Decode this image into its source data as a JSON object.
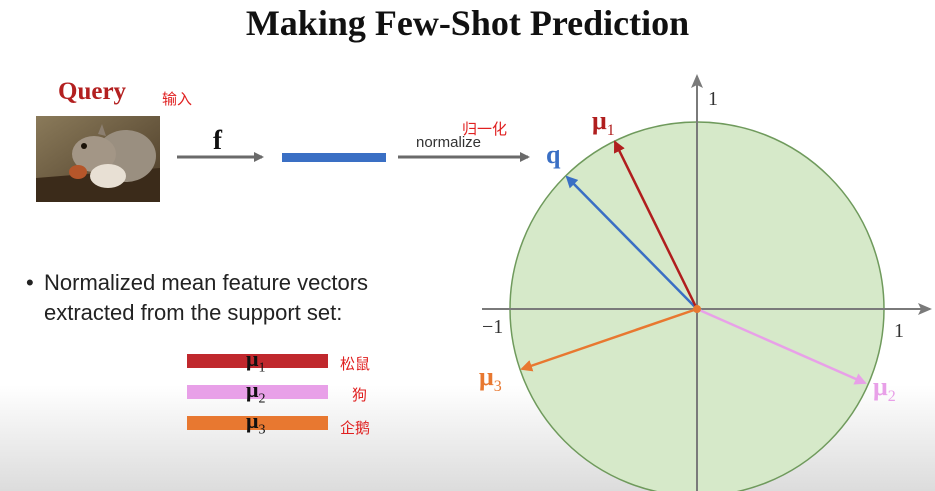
{
  "title": "Making Few-Shot Prediction",
  "query": {
    "label": "Query",
    "label_cn": "输入"
  },
  "pipeline": {
    "f_label": "f",
    "normalize_label": "normalize",
    "normalize_cn": "归一化"
  },
  "bullet": {
    "line1": "Normalized mean feature vectors",
    "line2": "extracted from the support set:"
  },
  "support_vectors": [
    {
      "symbol": "μ",
      "index": "1",
      "cn": "松鼠",
      "color": "#c0282d"
    },
    {
      "symbol": "μ",
      "index": "2",
      "cn": "狗",
      "color": "#e8a0e8"
    },
    {
      "symbol": "μ",
      "index": "3",
      "cn": "企鹅",
      "color": "#e87830"
    }
  ],
  "plot": {
    "tick_labels": {
      "x_pos": "1",
      "x_neg": "−1",
      "y_pos": "1"
    },
    "vectors": [
      {
        "name": "q",
        "index": "",
        "color": "#3a6fc4"
      },
      {
        "name": "μ",
        "index": "1",
        "color": "#b01e1e"
      },
      {
        "name": "μ",
        "index": "2",
        "color": "#e8a0e8"
      },
      {
        "name": "μ",
        "index": "3",
        "color": "#e87830"
      }
    ],
    "circle_fill": "#d6e9c9",
    "circle_stroke": "#6f9a5c"
  },
  "colors": {
    "feature_bar": "#3a6fc4",
    "title": "#111111",
    "query_label": "#b32020"
  }
}
